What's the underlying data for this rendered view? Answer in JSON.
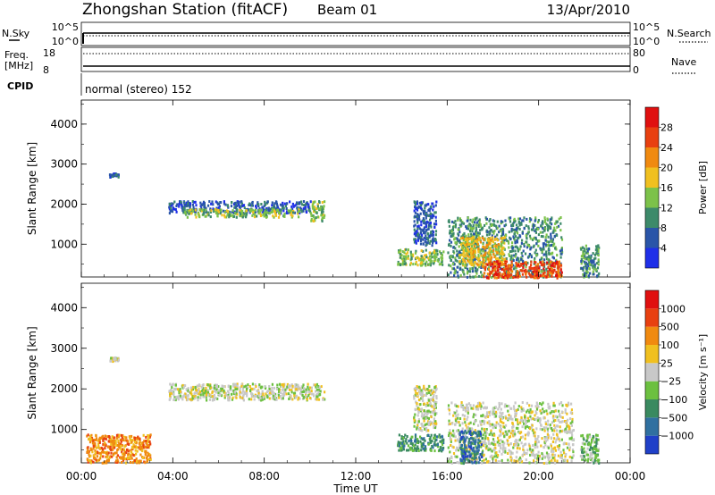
{
  "header": {
    "station": "Zhongshan Station (fitACF)",
    "beam": "Beam 01",
    "date": "13/Apr/2010"
  },
  "panels": {
    "nsky_label": "N.Sky",
    "nsky_ticks": [
      "10^5",
      "10^0"
    ],
    "nsearch_label": "N.Search",
    "nsearch_ticks": [
      "10^5",
      "10^0"
    ],
    "freq_label_1": "Freq.",
    "freq_label_2": "[MHz]",
    "freq_ticks": [
      "18",
      "8"
    ],
    "nave_label": "Nave",
    "nave_ticks": [
      "80",
      "0"
    ],
    "cpid_label": "CPID",
    "cpid_text": "normal (stereo) 152"
  },
  "chart_data": [
    {
      "type": "heatmap",
      "name": "power",
      "ylabel": "Slant Range [km]",
      "ylim": [
        180,
        4600
      ],
      "yticks": [
        "1000",
        "2000",
        "3000",
        "4000"
      ],
      "colorbar_label": "Power [dB]",
      "colorbar_ticks": [
        "4",
        "8",
        "12",
        "16",
        "20",
        "24",
        "28"
      ],
      "colorbar_colors": [
        "#1f2fe8",
        "#2a55a8",
        "#3d8a6a",
        "#7cc24a",
        "#f0c020",
        "#f08a10",
        "#e84010",
        "#e01010"
      ],
      "regions": [
        {
          "t0": 1.2,
          "t1": 1.6,
          "r0": 2700,
          "r1": 2800,
          "level": 1
        },
        {
          "t0": 3.8,
          "t1": 10.0,
          "r0": 1800,
          "r1": 2100,
          "level": 1
        },
        {
          "t0": 4.5,
          "t1": 9.5,
          "r0": 1700,
          "r1": 1900,
          "level": 3
        },
        {
          "t0": 10.0,
          "t1": 10.6,
          "r0": 1600,
          "r1": 2100,
          "level": 3
        },
        {
          "t0": 13.8,
          "t1": 15.8,
          "r0": 500,
          "r1": 900,
          "level": 3
        },
        {
          "t0": 14.5,
          "t1": 15.5,
          "r0": 1000,
          "r1": 2100,
          "level": 1
        },
        {
          "t0": 16.0,
          "t1": 21.0,
          "r0": 200,
          "r1": 1700,
          "level": 2
        },
        {
          "t0": 16.5,
          "t1": 18.5,
          "r0": 500,
          "r1": 1200,
          "level": 4
        },
        {
          "t0": 17.5,
          "t1": 21.0,
          "r0": 180,
          "r1": 600,
          "level": 6
        },
        {
          "t0": 21.8,
          "t1": 22.6,
          "r0": 200,
          "r1": 1000,
          "level": 2
        }
      ]
    },
    {
      "type": "heatmap",
      "name": "velocity",
      "xlabel": "Time UT",
      "xticks": [
        "00:00",
        "04:00",
        "08:00",
        "12:00",
        "16:00",
        "20:00",
        "00:00"
      ],
      "xlim": [
        0,
        24
      ],
      "ylabel": "Slant Range [km]",
      "ylim": [
        180,
        4600
      ],
      "yticks": [
        "1000",
        "2000",
        "3000",
        "4000"
      ],
      "colorbar_label": "Velocity [m s⁻¹]",
      "colorbar_ticks": [
        "1000",
        "500",
        "100",
        "25",
        "−25",
        "−100",
        "−500",
        "−1000"
      ],
      "colorbar_colors": [
        "#2040c8",
        "#3070a0",
        "#3a8a60",
        "#6cc040",
        "#c8c8c8",
        "#f0c020",
        "#f08a10",
        "#e84010",
        "#e01010"
      ],
      "regions": [
        {
          "t0": 1.2,
          "t1": 1.6,
          "r0": 2700,
          "r1": 2800,
          "level": 4
        },
        {
          "t0": 3.8,
          "t1": 10.6,
          "r0": 1750,
          "r1": 2150,
          "level": 4
        },
        {
          "t0": 13.8,
          "t1": 15.8,
          "r0": 500,
          "r1": 900,
          "level": 2
        },
        {
          "t0": 14.5,
          "t1": 15.5,
          "r0": 1000,
          "r1": 2100,
          "level": 4
        },
        {
          "t0": 16.0,
          "t1": 21.5,
          "r0": 200,
          "r1": 1700,
          "level": 4
        },
        {
          "t0": 16.5,
          "t1": 17.5,
          "r0": 200,
          "r1": 1000,
          "level": 1
        },
        {
          "t0": 0.2,
          "t1": 3.0,
          "r0": 200,
          "r1": 900,
          "level": 6
        },
        {
          "t0": 21.8,
          "t1": 22.6,
          "r0": 200,
          "r1": 900,
          "level": 3
        }
      ]
    }
  ]
}
